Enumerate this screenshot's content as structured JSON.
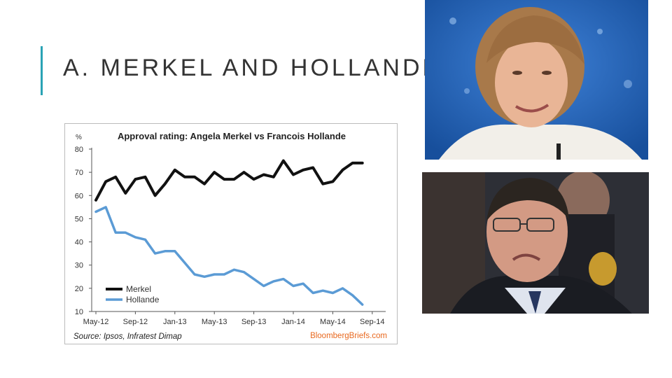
{
  "slide": {
    "title": "A. MERKEL AND HOLLANDE"
  },
  "colors": {
    "accent": "#2aa3b5",
    "merkel_line": "#111111",
    "hollande_line": "#5b9bd5",
    "source_brand": "#e8681e"
  },
  "photos": [
    {
      "name": "merkel-photo",
      "icon": "portrait-photo"
    },
    {
      "name": "hollande-photo",
      "icon": "portrait-photo"
    }
  ],
  "chart_data": {
    "type": "line",
    "title": "Approval rating: Angela Merkel vs Francois Hollande",
    "unit_label": "%",
    "x_tick_labels": [
      "May-12",
      "Sep-12",
      "Jan-13",
      "May-13",
      "Sep-13",
      "Jan-14",
      "May-14",
      "Sep-14"
    ],
    "x_months": [
      "May-12",
      "Jun-12",
      "Jul-12",
      "Aug-12",
      "Sep-12",
      "Oct-12",
      "Nov-12",
      "Dec-12",
      "Jan-13",
      "Feb-13",
      "Mar-13",
      "Apr-13",
      "May-13",
      "Jun-13",
      "Jul-13",
      "Aug-13",
      "Sep-13",
      "Oct-13",
      "Nov-13",
      "Dec-13",
      "Jan-14",
      "Feb-14",
      "Mar-14",
      "Apr-14",
      "May-14",
      "Jun-14",
      "Jul-14",
      "Aug-14"
    ],
    "y_ticks": [
      10,
      20,
      30,
      40,
      50,
      60,
      70,
      80
    ],
    "ylim": [
      10,
      80
    ],
    "grid": false,
    "legend_position": "bottom-left",
    "series": [
      {
        "name": "Merkel",
        "color": "#111111",
        "values": [
          58,
          66,
          68,
          61,
          67,
          68,
          60,
          65,
          71,
          68,
          68,
          65,
          70,
          67,
          67,
          70,
          67,
          69,
          68,
          75,
          69,
          71,
          72,
          65,
          66,
          71,
          74,
          74
        ]
      },
      {
        "name": "Hollande",
        "color": "#5b9bd5",
        "values": [
          53,
          55,
          44,
          44,
          42,
          41,
          35,
          36,
          36,
          31,
          26,
          25,
          26,
          26,
          28,
          27,
          24,
          21,
          23,
          24,
          21,
          22,
          18,
          19,
          18,
          20,
          17,
          13
        ]
      }
    ],
    "source": "Source: Ipsos, Infratest Dimap",
    "brand": "BloombergBriefs.com"
  }
}
